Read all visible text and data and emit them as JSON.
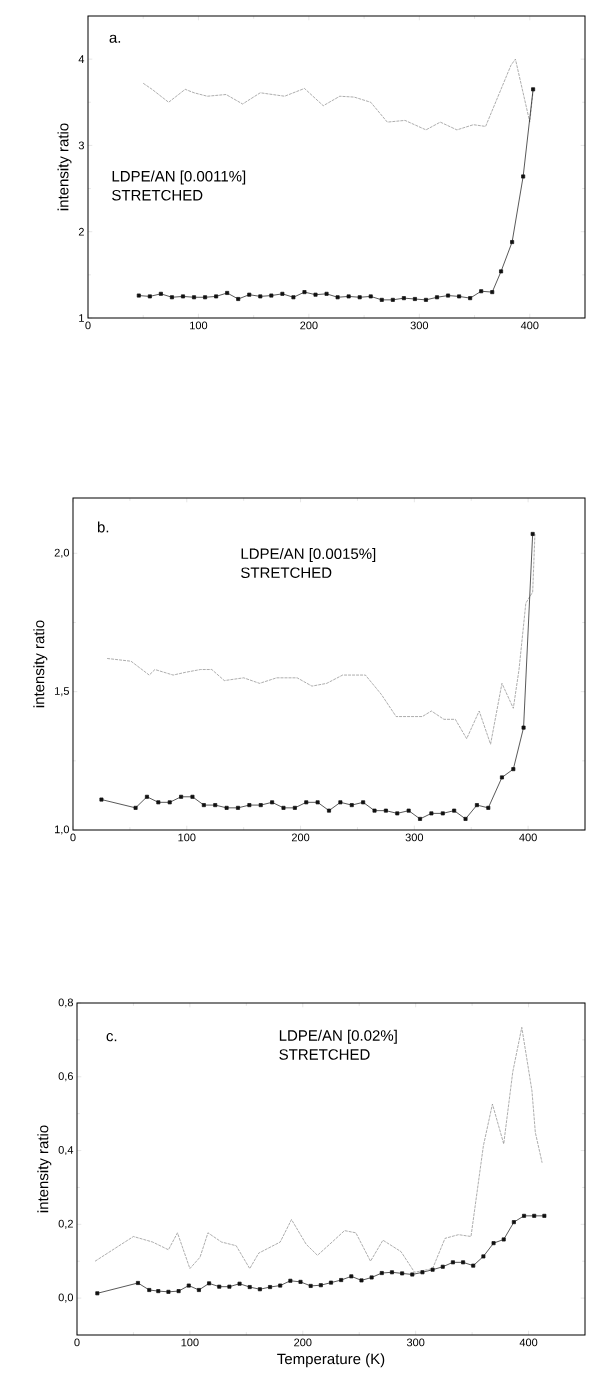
{
  "chart_data": [
    {
      "type": "line",
      "ylabel": "intensity ratio",
      "annotations": [
        "a.",
        "LDPE/AN [0.0011%]",
        "STRETCHED"
      ],
      "xlim": [
        0,
        450
      ],
      "xticks": [
        0,
        100,
        200,
        300,
        400
      ],
      "ylim": [
        1,
        4.5
      ],
      "yticks": [
        1,
        2,
        3,
        4
      ],
      "series": [
        {
          "color": "#8a8a8a",
          "line_style": "dashed",
          "marker": "none",
          "x": [
            50,
            58,
            73,
            88,
            96,
            108,
            125,
            140,
            156,
            178,
            196,
            213,
            228,
            241,
            256,
            271,
            287,
            306,
            319,
            334,
            349,
            360,
            383,
            387,
            400,
            403
          ],
          "values": [
            3.72,
            3.65,
            3.5,
            3.65,
            3.61,
            3.57,
            3.59,
            3.48,
            3.61,
            3.57,
            3.66,
            3.46,
            3.57,
            3.56,
            3.5,
            3.27,
            3.29,
            3.18,
            3.27,
            3.18,
            3.24,
            3.22,
            3.93,
            4.0,
            3.27,
            3.63
          ]
        },
        {
          "color": "#111111",
          "line_style": "solid",
          "marker": "square",
          "x": [
            46,
            56,
            66,
            76,
            86,
            96,
            106,
            116,
            126,
            136,
            146,
            156,
            166,
            176,
            186,
            196,
            206,
            216,
            226,
            236,
            246,
            256,
            266,
            276,
            286,
            296,
            306,
            316,
            326,
            336,
            346,
            356,
            366,
            374,
            384,
            394,
            403
          ],
          "values": [
            1.26,
            1.25,
            1.28,
            1.24,
            1.25,
            1.24,
            1.24,
            1.25,
            1.29,
            1.22,
            1.27,
            1.25,
            1.26,
            1.28,
            1.24,
            1.3,
            1.27,
            1.28,
            1.24,
            1.25,
            1.24,
            1.25,
            1.21,
            1.21,
            1.23,
            1.22,
            1.21,
            1.24,
            1.26,
            1.25,
            1.23,
            1.31,
            1.3,
            1.54,
            1.88,
            2.64,
            3.65
          ]
        }
      ]
    },
    {
      "type": "line",
      "ylabel": "intensity ratio",
      "annotations": [
        "b.",
        "LDPE/AN [0.0015%]",
        "STRETCHED"
      ],
      "xlim": [
        0,
        450
      ],
      "xticks": [
        0,
        100,
        200,
        300,
        400
      ],
      "ylim": [
        1.0,
        2.2
      ],
      "yticks": [
        {
          "value": 1.0,
          "label": "1,0"
        },
        {
          "value": 1.5,
          "label": "1,5"
        },
        {
          "value": 2.0,
          "label": "2,0"
        }
      ],
      "series": [
        {
          "color": "#8a8a8a",
          "line_style": "dashed",
          "marker": "none",
          "x": [
            30,
            51,
            67,
            72,
            88,
            99,
            112,
            122,
            133,
            150,
            164,
            179,
            197,
            210,
            223,
            237,
            257,
            271,
            284,
            299,
            307,
            315,
            326,
            336,
            346,
            357,
            367,
            377,
            387,
            392,
            398,
            404,
            406
          ],
          "values": [
            1.62,
            1.61,
            1.56,
            1.58,
            1.56,
            1.57,
            1.58,
            1.58,
            1.54,
            1.55,
            1.53,
            1.55,
            1.55,
            1.52,
            1.53,
            1.56,
            1.56,
            1.49,
            1.41,
            1.41,
            1.41,
            1.43,
            1.4,
            1.4,
            1.33,
            1.43,
            1.31,
            1.53,
            1.44,
            1.58,
            1.82,
            1.86,
            2.07
          ]
        },
        {
          "color": "#111111",
          "line_style": "solid",
          "marker": "square",
          "x": [
            25,
            55,
            65,
            75,
            85,
            95,
            105,
            115,
            125,
            135,
            145,
            155,
            165,
            175,
            185,
            195,
            205,
            215,
            225,
            235,
            245,
            255,
            265,
            275,
            285,
            295,
            305,
            315,
            325,
            335,
            345,
            355,
            365,
            377,
            387,
            396,
            404
          ],
          "values": [
            1.11,
            1.08,
            1.12,
            1.1,
            1.1,
            1.12,
            1.12,
            1.09,
            1.09,
            1.08,
            1.08,
            1.09,
            1.09,
            1.1,
            1.08,
            1.08,
            1.1,
            1.1,
            1.07,
            1.1,
            1.09,
            1.1,
            1.07,
            1.07,
            1.06,
            1.07,
            1.04,
            1.06,
            1.06,
            1.07,
            1.04,
            1.09,
            1.08,
            1.19,
            1.22,
            1.37,
            2.07
          ]
        }
      ]
    },
    {
      "type": "line",
      "xlabel": "Temperature (K)",
      "ylabel": "intensity ratio",
      "annotations": [
        "c.",
        "LDPE/AN [0.02%]",
        "STRETCHED"
      ],
      "xlim": [
        0,
        450
      ],
      "xticks": [
        0,
        100,
        200,
        300,
        400
      ],
      "ylim": [
        -0.1,
        0.8
      ],
      "yticks": [
        {
          "value": 0.0,
          "label": "0,0"
        },
        {
          "value": 0.2,
          "label": "0,2"
        },
        {
          "value": 0.4,
          "label": "0,4"
        },
        {
          "value": 0.6,
          "label": "0,6"
        },
        {
          "value": 0.8,
          "label": "0,8"
        }
      ],
      "series": [
        {
          "color": "#8a8a8a",
          "line_style": "dashed",
          "marker": "none",
          "x": [
            16,
            50,
            67,
            81,
            89,
            100,
            109,
            116,
            128,
            141,
            153,
            161,
            180,
            190,
            203,
            213,
            226,
            237,
            247,
            260,
            271,
            287,
            299,
            315,
            326,
            338,
            349,
            360,
            368,
            378,
            386,
            394,
            403,
            406,
            412
          ],
          "values": [
            0.1,
            0.167,
            0.152,
            0.131,
            0.177,
            0.08,
            0.111,
            0.177,
            0.152,
            0.142,
            0.08,
            0.122,
            0.152,
            0.213,
            0.146,
            0.116,
            0.152,
            0.183,
            0.177,
            0.1,
            0.157,
            0.126,
            0.07,
            0.08,
            0.162,
            0.172,
            0.167,
            0.413,
            0.526,
            0.418,
            0.613,
            0.734,
            0.562,
            0.449,
            0.367
          ]
        },
        {
          "color": "#111111",
          "line_style": "solid",
          "marker": "square",
          "x": [
            18,
            54,
            64,
            72,
            81,
            90,
            99,
            108,
            117,
            126,
            135,
            144,
            153,
            162,
            171,
            180,
            189,
            198,
            207,
            216,
            225,
            234,
            243,
            252,
            261,
            270,
            279,
            288,
            297,
            306,
            315,
            324,
            333,
            342,
            351,
            360,
            369,
            378,
            387,
            396,
            405,
            414
          ],
          "values": [
            0.013,
            0.041,
            0.022,
            0.019,
            0.017,
            0.019,
            0.034,
            0.022,
            0.04,
            0.031,
            0.031,
            0.039,
            0.03,
            0.024,
            0.03,
            0.034,
            0.047,
            0.044,
            0.033,
            0.035,
            0.042,
            0.049,
            0.059,
            0.048,
            0.056,
            0.068,
            0.07,
            0.067,
            0.064,
            0.07,
            0.077,
            0.085,
            0.097,
            0.097,
            0.088,
            0.113,
            0.149,
            0.159,
            0.206,
            0.223,
            0.223,
            0.223
          ]
        }
      ]
    }
  ]
}
